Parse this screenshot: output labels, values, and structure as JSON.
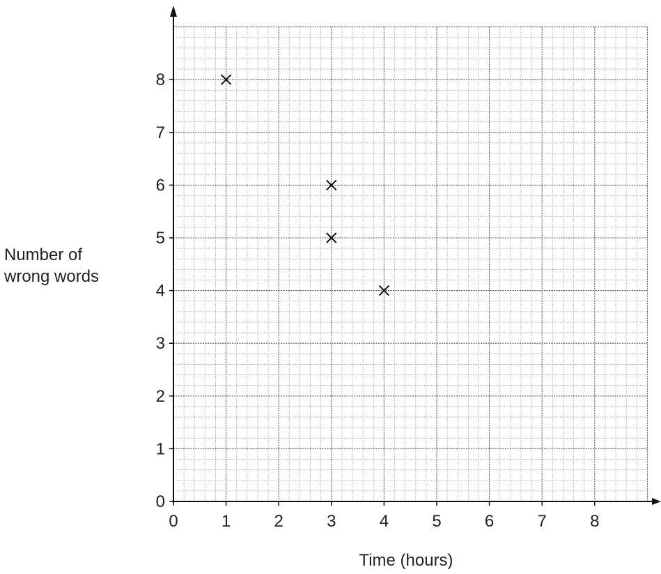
{
  "chart_data": {
    "type": "scatter",
    "title": "",
    "xlabel": "Time (hours)",
    "ylabel_lines": [
      "Number of",
      "wrong words"
    ],
    "xlim": [
      0,
      9
    ],
    "ylim": [
      0,
      9
    ],
    "x_ticks": [
      0,
      1,
      2,
      3,
      4,
      5,
      6,
      7,
      8
    ],
    "y_ticks": [
      0,
      1,
      2,
      3,
      4,
      5,
      6,
      7,
      8
    ],
    "minor_divisions": 5,
    "grid": true,
    "marker": "x",
    "points": [
      {
        "x": 1,
        "y": 8
      },
      {
        "x": 3,
        "y": 6
      },
      {
        "x": 3,
        "y": 5
      },
      {
        "x": 4,
        "y": 4
      }
    ]
  }
}
